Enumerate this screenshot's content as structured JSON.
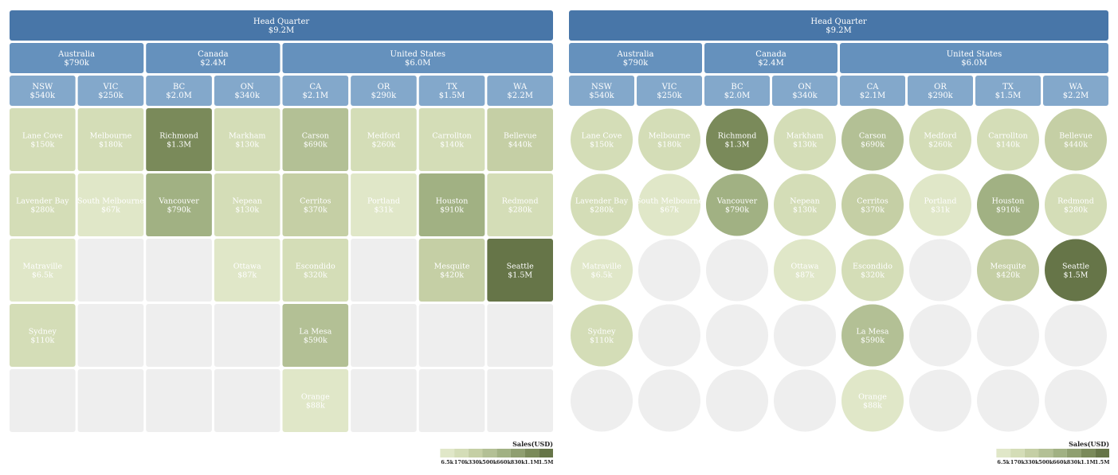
{
  "chart_data": [
    {
      "type": "heatmap",
      "shape": "rect",
      "root": {
        "label": "Head Quarter",
        "value": "$9.2M"
      },
      "countries": [
        {
          "label": "Australia",
          "value": "$790k"
        },
        {
          "label": "Canada",
          "value": "$2.4M"
        },
        {
          "label": "United States",
          "value": "$6.0M"
        }
      ],
      "states": [
        {
          "label": "NSW",
          "value": "$540k"
        },
        {
          "label": "VIC",
          "value": "$250k"
        },
        {
          "label": "BC",
          "value": "$2.0M"
        },
        {
          "label": "ON",
          "value": "$340k"
        },
        {
          "label": "CA",
          "value": "$2.1M"
        },
        {
          "label": "OR",
          "value": "$290k"
        },
        {
          "label": "TX",
          "value": "$1.5M"
        },
        {
          "label": "WA",
          "value": "$2.2M"
        }
      ],
      "columns": [
        [
          {
            "city": "Lane Cove",
            "label": "$150k",
            "value": 150000
          },
          {
            "city": "Lavender Bay",
            "label": "$280k",
            "value": 280000
          },
          {
            "city": "Matraville",
            "label": "$6.5k",
            "value": 6500
          },
          {
            "city": "Sydney",
            "label": "$110k",
            "value": 110000
          }
        ],
        [
          {
            "city": "Melbourne",
            "label": "$180k",
            "value": 180000
          },
          {
            "city": "South Melbourne",
            "label": "$67k",
            "value": 67000
          }
        ],
        [
          {
            "city": "Richmond",
            "label": "$1.3M",
            "value": 1300000
          },
          {
            "city": "Vancouver",
            "label": "$790k",
            "value": 790000
          }
        ],
        [
          {
            "city": "Markham",
            "label": "$130k",
            "value": 130000
          },
          {
            "city": "Nepean",
            "label": "$130k",
            "value": 130000
          },
          {
            "city": "Ottawa",
            "label": "$87k",
            "value": 87000
          }
        ],
        [
          {
            "city": "Carson",
            "label": "$690k",
            "value": 690000
          },
          {
            "city": "Cerritos",
            "label": "$370k",
            "value": 370000
          },
          {
            "city": "Escondido",
            "label": "$320k",
            "value": 320000
          },
          {
            "city": "La Mesa",
            "label": "$590k",
            "value": 590000
          },
          {
            "city": "Orange",
            "label": "$88k",
            "value": 88000
          }
        ],
        [
          {
            "city": "Medford",
            "label": "$260k",
            "value": 260000
          },
          {
            "city": "Portland",
            "label": "$31k",
            "value": 31000
          }
        ],
        [
          {
            "city": "Carrollton",
            "label": "$140k",
            "value": 140000
          },
          {
            "city": "Houston",
            "label": "$910k",
            "value": 910000
          },
          {
            "city": "Mesquite",
            "label": "$420k",
            "value": 420000
          }
        ],
        [
          {
            "city": "Bellevue",
            "label": "$440k",
            "value": 440000
          },
          {
            "city": "Redmond",
            "label": "$280k",
            "value": 280000
          },
          {
            "city": "Seattle",
            "label": "$1.5M",
            "value": 1500000
          }
        ]
      ],
      "legend": {
        "title": "Sales(USD)",
        "placement": "bottom-right",
        "ticks": [
          "6.5k",
          "170k",
          "330k",
          "500k",
          "660k",
          "830k",
          "1.1M",
          "1.5M"
        ]
      }
    },
    {
      "type": "heatmap",
      "shape": "circle",
      "root": {
        "label": "Head Quarter",
        "value": "$9.2M"
      },
      "countries": [
        {
          "label": "Australia",
          "value": "$790k"
        },
        {
          "label": "Canada",
          "value": "$2.4M"
        },
        {
          "label": "United States",
          "value": "$6.0M"
        }
      ],
      "states": [
        {
          "label": "NSW",
          "value": "$540k"
        },
        {
          "label": "VIC",
          "value": "$250k"
        },
        {
          "label": "BC",
          "value": "$2.0M"
        },
        {
          "label": "ON",
          "value": "$340k"
        },
        {
          "label": "CA",
          "value": "$2.1M"
        },
        {
          "label": "OR",
          "value": "$290k"
        },
        {
          "label": "TX",
          "value": "$1.5M"
        },
        {
          "label": "WA",
          "value": "$2.2M"
        }
      ],
      "columns": [
        [
          {
            "city": "Lane Cove",
            "label": "$150k",
            "value": 150000
          },
          {
            "city": "Lavender Bay",
            "label": "$280k",
            "value": 280000
          },
          {
            "city": "Matraville",
            "label": "$6.5k",
            "value": 6500
          },
          {
            "city": "Sydney",
            "label": "$110k",
            "value": 110000
          }
        ],
        [
          {
            "city": "Melbourne",
            "label": "$180k",
            "value": 180000
          },
          {
            "city": "South Melbourne",
            "label": "$67k",
            "value": 67000
          }
        ],
        [
          {
            "city": "Richmond",
            "label": "$1.3M",
            "value": 1300000
          },
          {
            "city": "Vancouver",
            "label": "$790k",
            "value": 790000
          }
        ],
        [
          {
            "city": "Markham",
            "label": "$130k",
            "value": 130000
          },
          {
            "city": "Nepean",
            "label": "$130k",
            "value": 130000
          },
          {
            "city": "Ottawa",
            "label": "$87k",
            "value": 87000
          }
        ],
        [
          {
            "city": "Carson",
            "label": "$690k",
            "value": 690000
          },
          {
            "city": "Cerritos",
            "label": "$370k",
            "value": 370000
          },
          {
            "city": "Escondido",
            "label": "$320k",
            "value": 320000
          },
          {
            "city": "La Mesa",
            "label": "$590k",
            "value": 590000
          },
          {
            "city": "Orange",
            "label": "$88k",
            "value": 88000
          }
        ],
        [
          {
            "city": "Medford",
            "label": "$260k",
            "value": 260000
          },
          {
            "city": "Portland",
            "label": "$31k",
            "value": 31000
          }
        ],
        [
          {
            "city": "Carrollton",
            "label": "$140k",
            "value": 140000
          },
          {
            "city": "Houston",
            "label": "$910k",
            "value": 910000
          },
          {
            "city": "Mesquite",
            "label": "$420k",
            "value": 420000
          }
        ],
        [
          {
            "city": "Bellevue",
            "label": "$440k",
            "value": 440000
          },
          {
            "city": "Redmond",
            "label": "$280k",
            "value": 280000
          },
          {
            "city": "Seattle",
            "label": "$1.5M",
            "value": 1500000
          }
        ]
      ],
      "legend": {
        "title": "Sales(USD)",
        "placement": "bottom-right",
        "ticks": [
          "6.5k",
          "170k",
          "330k",
          "500k",
          "660k",
          "830k",
          "1.1M",
          "1.5M"
        ]
      }
    }
  ],
  "colors": {
    "root": "#4876a8",
    "country": "#6591bd",
    "state": "#83a8cb",
    "empty": "#eeeeee",
    "scale": [
      "#e0e7c8",
      "#d4ddb7",
      "#c5cfa5",
      "#b3c095",
      "#a1b183",
      "#8f9f70",
      "#7a8a5a",
      "#667548"
    ]
  }
}
